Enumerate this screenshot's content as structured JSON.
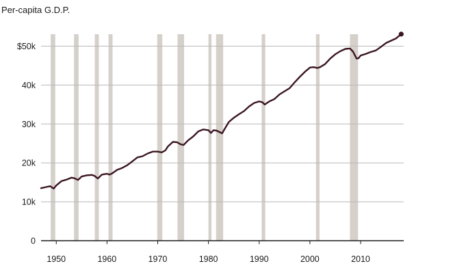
{
  "chart_data": {
    "type": "line",
    "title": "Per-capita G.D.P.",
    "xlabel": "",
    "ylabel": "",
    "xlim": [
      1947,
      2018.5
    ],
    "ylim": [
      0,
      52000
    ],
    "x_ticks": [
      1950,
      1960,
      1970,
      1980,
      1990,
      2000,
      2010
    ],
    "x_tick_labels": [
      "1950",
      "1960",
      "1970",
      "1980",
      "1990",
      "2000",
      "2010"
    ],
    "y_ticks": [
      0,
      10000,
      20000,
      30000,
      40000,
      50000
    ],
    "y_tick_labels": [
      "0",
      "10k",
      "20k",
      "30k",
      "40k",
      "$50k"
    ],
    "grid": true,
    "colors": {
      "line": "#3a1620",
      "recession": "#d6d0cb",
      "grid": "#b8b8b8"
    },
    "recessions": [
      [
        1948.9,
        1949.8
      ],
      [
        1953.5,
        1954.4
      ],
      [
        1957.6,
        1958.4
      ],
      [
        1960.3,
        1961.1
      ],
      [
        1969.9,
        1970.9
      ],
      [
        1973.9,
        1975.2
      ],
      [
        1980.0,
        1980.6
      ],
      [
        1981.5,
        1982.9
      ],
      [
        1990.5,
        1991.2
      ],
      [
        2001.2,
        2001.9
      ],
      [
        2007.9,
        2009.5
      ]
    ],
    "series": [
      {
        "x": [
          1947,
          1948,
          1948.8,
          1949.5,
          1950,
          1951,
          1952,
          1953,
          1953.5,
          1954.3,
          1955,
          1956,
          1957,
          1957.5,
          1958.2,
          1959,
          1960,
          1960.5,
          1961,
          1962,
          1963,
          1964,
          1965,
          1966,
          1967,
          1968,
          1969,
          1970,
          1970.8,
          1971.5,
          1972,
          1973,
          1973.8,
          1974.5,
          1975.1,
          1976,
          1977,
          1978,
          1979,
          1980,
          1980.5,
          1981,
          1981.6,
          1982.7,
          1983,
          1984,
          1985,
          1986,
          1987,
          1988,
          1989,
          1990,
          1990.6,
          1991.1,
          1992,
          1993,
          1994,
          1995,
          1996,
          1997,
          1998,
          1999,
          2000,
          2000.7,
          2001.5,
          2002,
          2003,
          2004,
          2005,
          2006,
          2007,
          2007.9,
          2008.5,
          2009.2,
          2009.6,
          2010,
          2011,
          2012,
          2013,
          2014,
          2015,
          2016,
          2017,
          2018
        ],
        "y": [
          13500,
          13800,
          14000,
          13400,
          14200,
          15300,
          15700,
          16200,
          16100,
          15600,
          16500,
          16800,
          16900,
          16700,
          16000,
          17000,
          17200,
          17000,
          17300,
          18200,
          18700,
          19400,
          20400,
          21400,
          21700,
          22400,
          22900,
          22900,
          22700,
          23200,
          24200,
          25400,
          25300,
          24800,
          24600,
          25800,
          26800,
          28100,
          28600,
          28400,
          27700,
          28400,
          28300,
          27600,
          28300,
          30500,
          31600,
          32500,
          33300,
          34500,
          35400,
          35800,
          35600,
          35000,
          35800,
          36400,
          37600,
          38400,
          39200,
          40700,
          42100,
          43400,
          44500,
          44600,
          44400,
          44600,
          45400,
          46800,
          47900,
          48700,
          49300,
          49400,
          48600,
          46800,
          46900,
          47600,
          48000,
          48500,
          48900,
          49800,
          50800,
          51400,
          52000,
          53100
        ]
      }
    ]
  }
}
